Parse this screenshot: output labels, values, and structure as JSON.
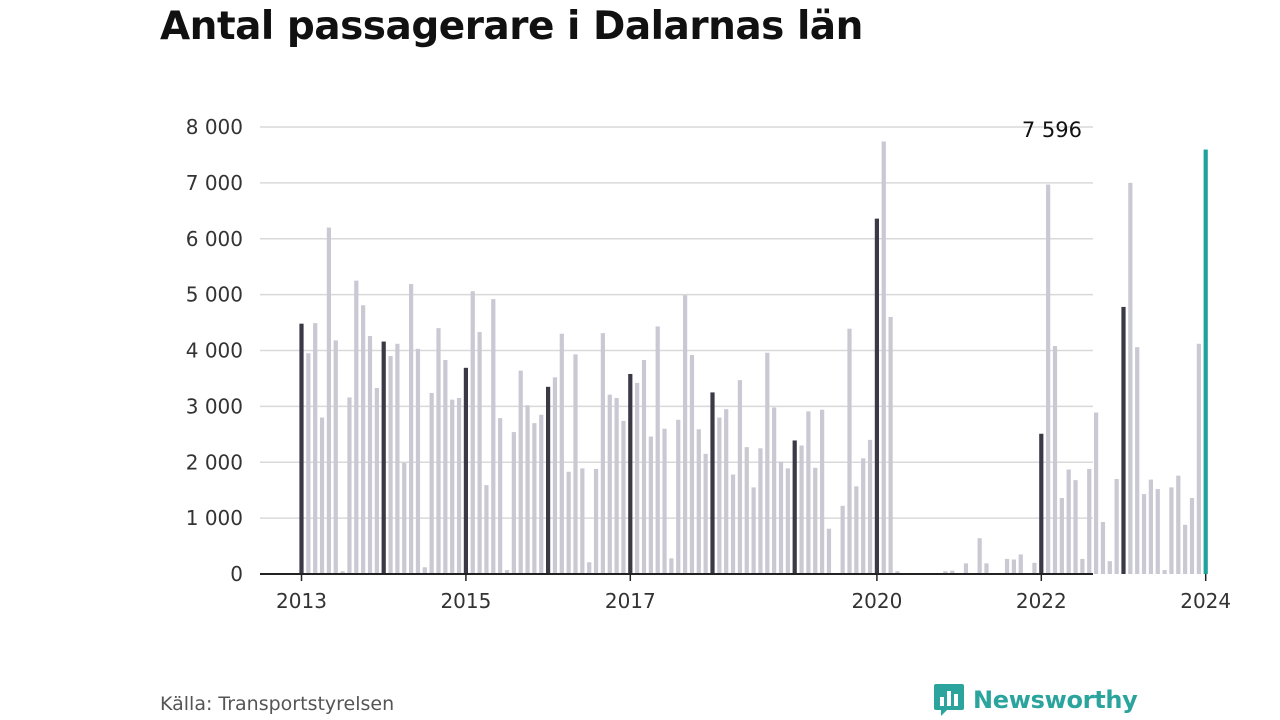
{
  "title": "Antal passagerare i Dalarnas län",
  "source": "Källa: Transportstyrelsen",
  "brand": {
    "name": "Newsworthy",
    "icon": "newsworthy-logo-icon"
  },
  "colors": {
    "bar_default": "#c9c8d3",
    "bar_january": "#3a3945",
    "bar_highlight": "#1ba39c",
    "grid": "#d9d9d9",
    "axis": "#222222",
    "brand": "#2aa49c"
  },
  "chart_data": {
    "type": "bar",
    "x_start": "2013-01",
    "interval": "month",
    "ylim": [
      0,
      8000
    ],
    "yticks": [
      0,
      1000,
      2000,
      3000,
      4000,
      5000,
      6000,
      7000,
      8000
    ],
    "ytick_labels": [
      "0",
      "1 000",
      "2 000",
      "3 000",
      "4 000",
      "5 000",
      "6 000",
      "7 000",
      "8 000"
    ],
    "xtick_labels": [
      {
        "label": "2013",
        "month": "2013-01"
      },
      {
        "label": "2015",
        "month": "2015-01"
      },
      {
        "label": "2017",
        "month": "2017-01"
      },
      {
        "label": "2020",
        "month": "2020-01"
      },
      {
        "label": "2022",
        "month": "2022-01"
      },
      {
        "label": "2024",
        "month": "2024-01"
      }
    ],
    "annotation": {
      "label": "7 596",
      "month": "2024-01",
      "value": 7596
    },
    "grid": true,
    "values": [
      4480,
      3950,
      4490,
      2800,
      6200,
      4180,
      50,
      3160,
      5250,
      4810,
      4260,
      3330,
      4160,
      3900,
      4120,
      1990,
      5190,
      4030,
      120,
      3240,
      4400,
      3830,
      3120,
      3150,
      3690,
      5060,
      4330,
      1590,
      4920,
      2790,
      70,
      2540,
      3640,
      3020,
      2700,
      2850,
      3350,
      3520,
      4300,
      1830,
      3930,
      1890,
      210,
      1880,
      4310,
      3210,
      3150,
      2740,
      3580,
      3420,
      3830,
      2460,
      4430,
      2600,
      280,
      2760,
      4990,
      3920,
      2590,
      2150,
      3250,
      2800,
      2950,
      1780,
      3470,
      2270,
      1550,
      2250,
      3960,
      2980,
      2010,
      1890,
      2390,
      2300,
      2910,
      1900,
      2940,
      810,
      0,
      1220,
      4390,
      1570,
      2070,
      2400,
      6360,
      7740,
      4600,
      50,
      0,
      0,
      0,
      0,
      0,
      0,
      50,
      60,
      0,
      190,
      0,
      640,
      190,
      0,
      0,
      270,
      260,
      350,
      0,
      200,
      2510,
      6970,
      4080,
      1360,
      1870,
      1680,
      270,
      1880,
      2890,
      930,
      230,
      1700,
      4780,
      7000,
      4060,
      1430,
      1690,
      1520,
      70,
      1550,
      1760,
      880,
      1360,
      4120,
      7596
    ]
  }
}
